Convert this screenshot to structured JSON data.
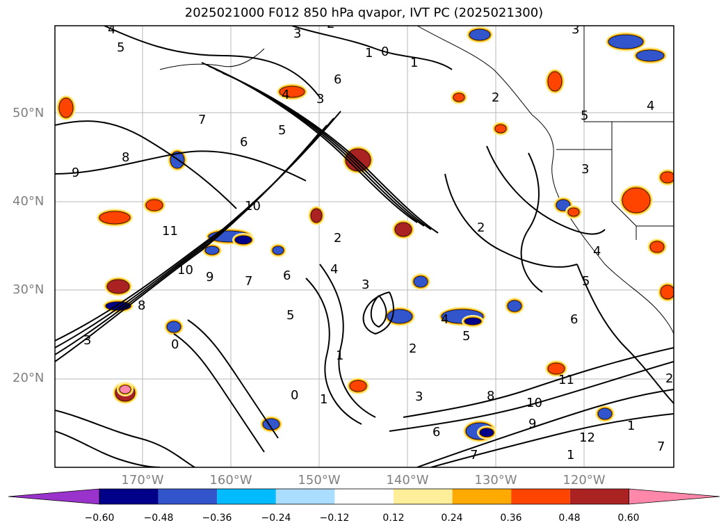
{
  "title": "2025021000 F012 850 hPa qvapor, IVT PC (2025021300)",
  "lat_labels": [
    "50°N",
    "40°N",
    "30°N",
    "20°N"
  ],
  "lon_labels": [
    "170°W",
    "160°W",
    "150°W",
    "140°W",
    "130°W",
    "120°W"
  ],
  "colorbar": {
    "ticks": [
      "−0.60",
      "−0.48",
      "−0.36",
      "−0.24",
      "−0.12",
      "0.12",
      "0.24",
      "0.36",
      "0.48",
      "0.60"
    ],
    "colors": [
      "#9933cc",
      "#000088",
      "#3355cc",
      "#00bbff",
      "#aaddff",
      "#ffffff",
      "#ffee99",
      "#ffaa00",
      "#ff4400",
      "#aa2222",
      "#ff88aa"
    ]
  },
  "contour_labels": [
    "4",
    "5",
    "3",
    "2",
    "1",
    "0",
    "1",
    "2",
    "3",
    "4",
    "5",
    "6",
    "3",
    "4",
    "5",
    "6",
    "7",
    "8",
    "9",
    "10",
    "11",
    "10",
    "9",
    "8",
    "7",
    "6",
    "5",
    "4",
    "3",
    "2",
    "1",
    "0",
    "1",
    "2",
    "3",
    "4",
    "5",
    "6",
    "7",
    "8",
    "9",
    "10",
    "11",
    "12",
    "1",
    "2",
    "3",
    "4",
    "5",
    "6",
    "7",
    "1",
    "2",
    "3",
    "0"
  ]
}
